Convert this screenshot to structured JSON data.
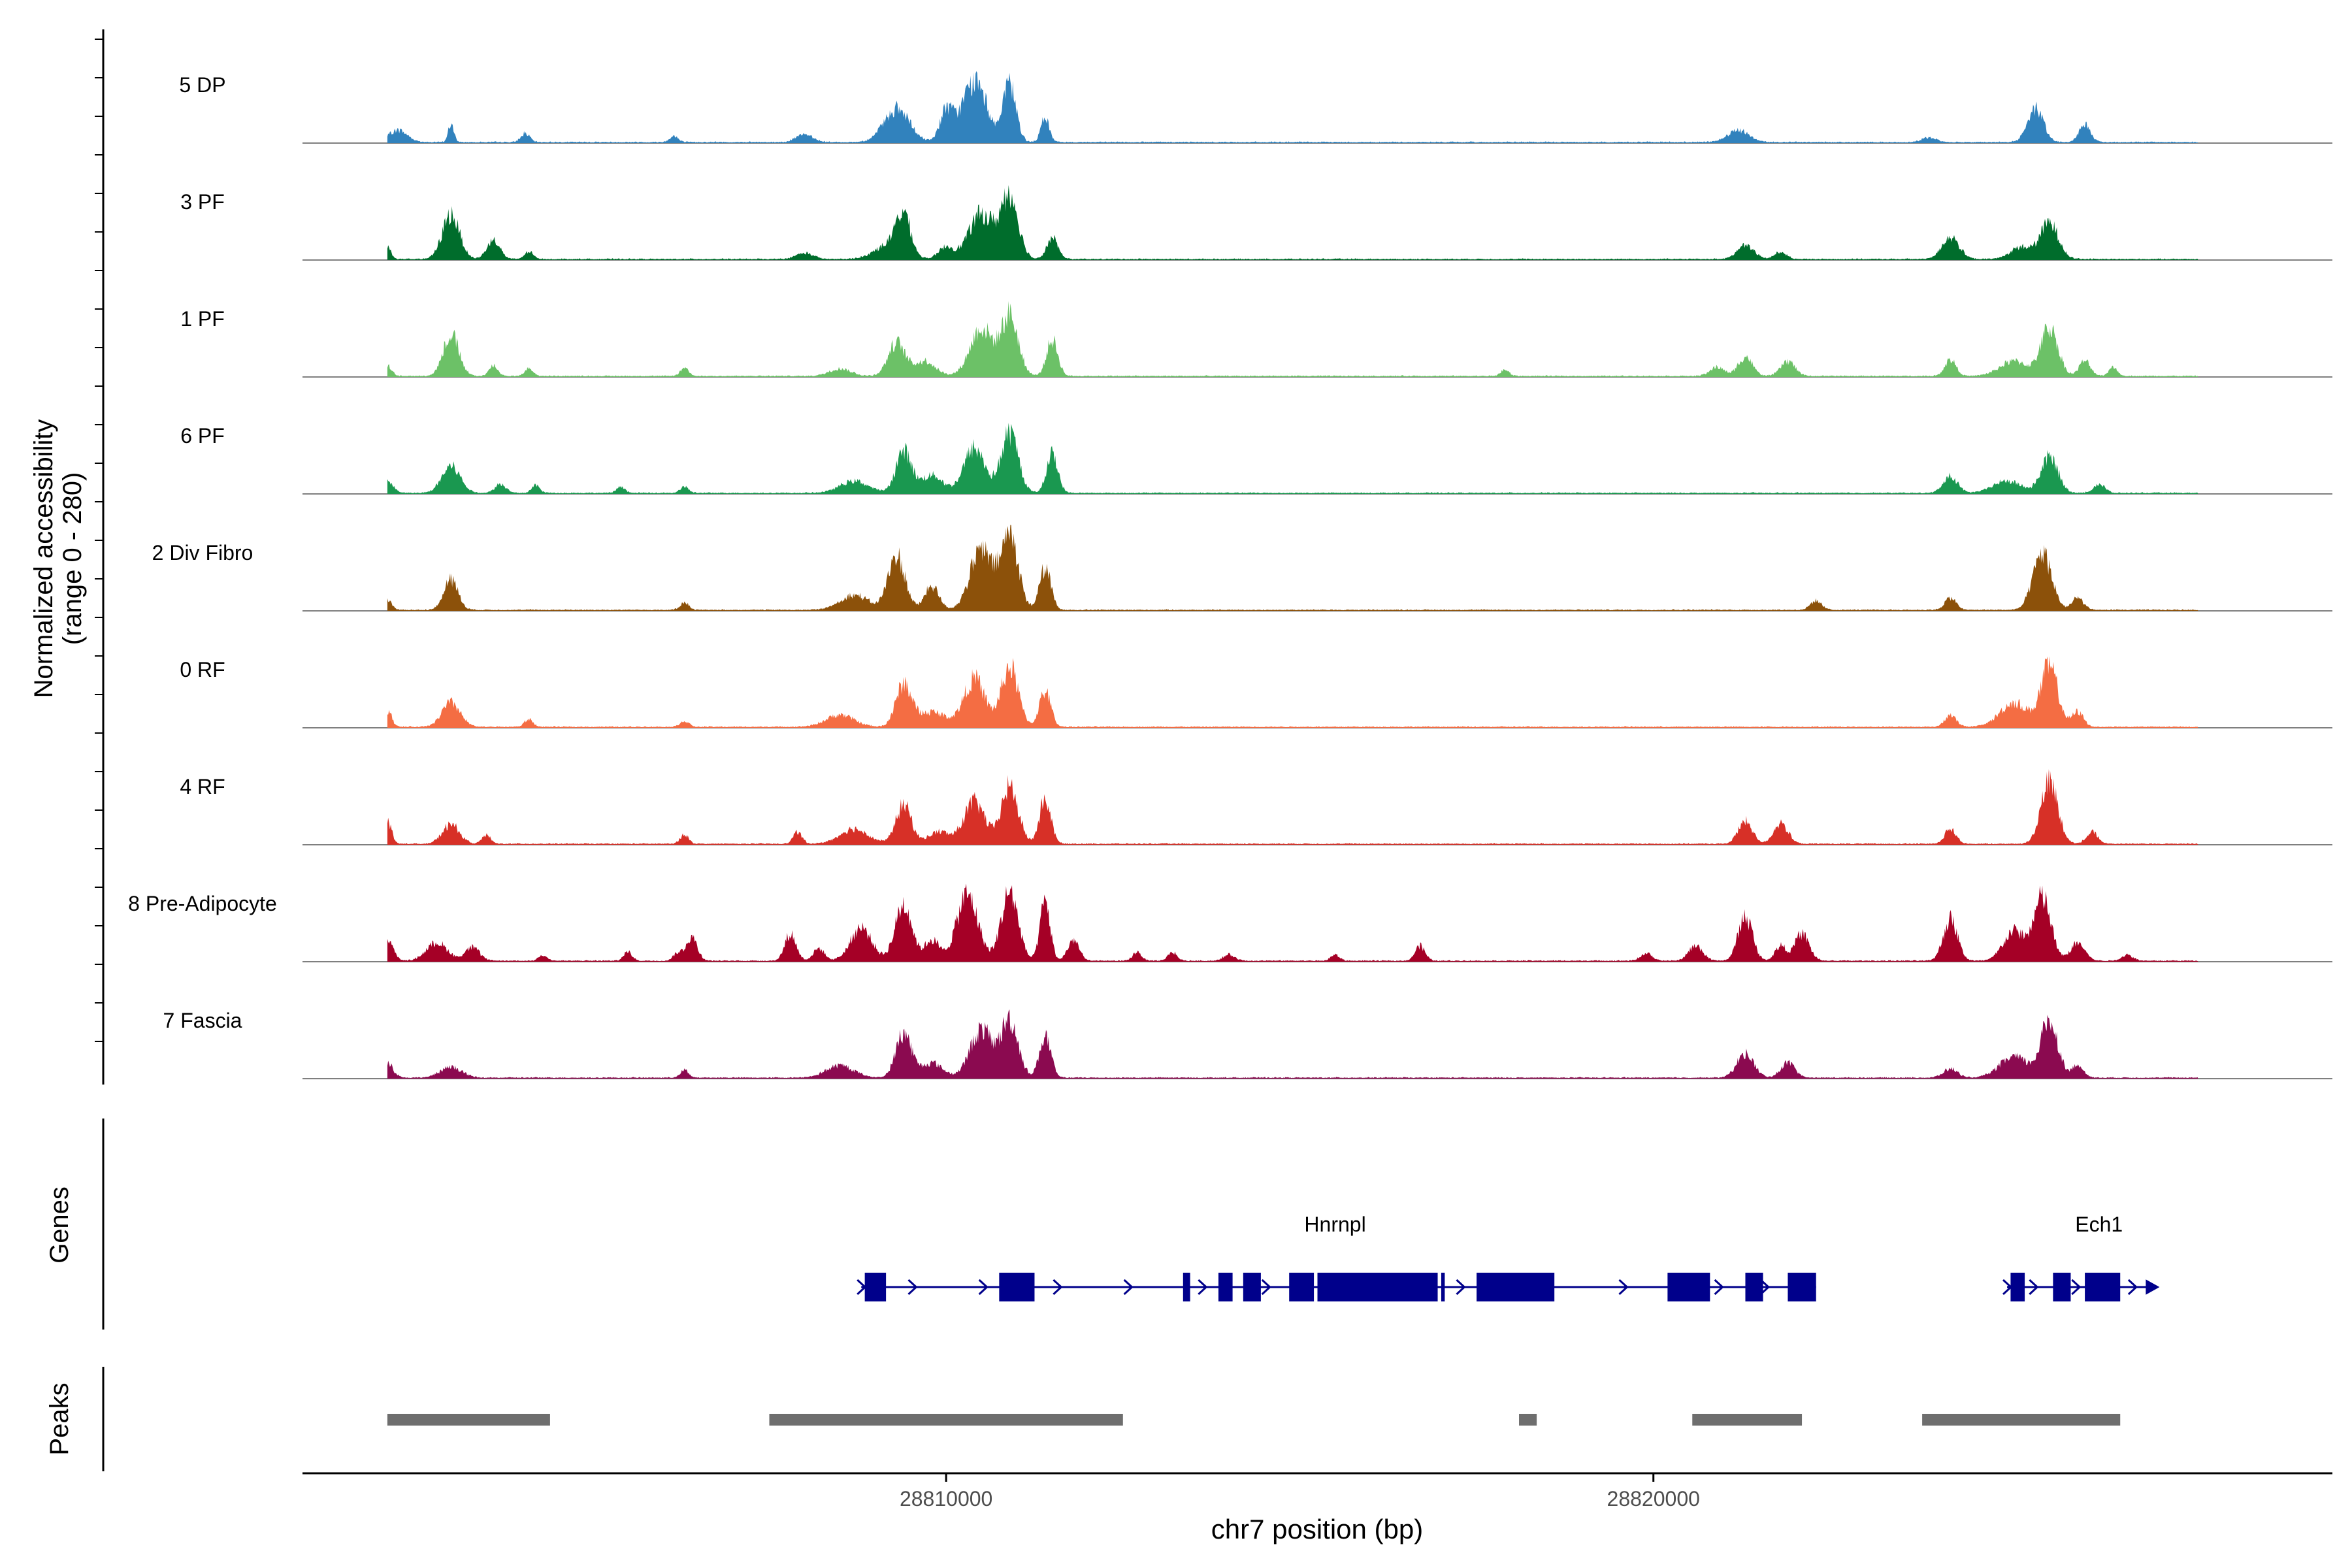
{
  "chart_data": {
    "type": "area",
    "title": "",
    "ylabel_line1": "Normalized accessibility",
    "ylabel_line2": "(range 0 - 280)",
    "xlabel": "chr7 position (bp)",
    "xlim": [
      28800900,
      28829600
    ],
    "ylim": [
      0,
      280
    ],
    "x_ticks": [
      {
        "value": 28810000,
        "label": "28810000"
      },
      {
        "value": 28820000,
        "label": "28820000"
      }
    ],
    "series": [
      {
        "name": "5 DP",
        "color": "#3182bd",
        "peaks": [
          [
            28802250,
            40,
            130
          ],
          [
            28803000,
            60,
            40
          ],
          [
            28804050,
            30,
            60
          ],
          [
            28806150,
            20,
            60
          ],
          [
            28808000,
            25,
            120
          ],
          [
            28809300,
            110,
            180
          ],
          [
            28810000,
            100,
            90
          ],
          [
            28810400,
            200,
            180
          ],
          [
            28810900,
            190,
            90
          ],
          [
            28811400,
            80,
            60
          ],
          [
            28821200,
            40,
            150
          ],
          [
            28823900,
            15,
            100
          ],
          [
            28825400,
            115,
            110
          ],
          [
            28826100,
            60,
            80
          ]
        ]
      },
      {
        "name": "3 PF",
        "color": "#006d2c",
        "peaks": [
          [
            28802100,
            40,
            50
          ],
          [
            28803000,
            150,
            120
          ],
          [
            28803600,
            65,
            90
          ],
          [
            28804100,
            25,
            60
          ],
          [
            28808000,
            20,
            120
          ],
          [
            28809200,
            50,
            200
          ],
          [
            28809400,
            130,
            100
          ],
          [
            28810000,
            40,
            100
          ],
          [
            28810500,
            150,
            180
          ],
          [
            28810900,
            210,
            120
          ],
          [
            28811500,
            70,
            80
          ],
          [
            28821300,
            45,
            120
          ],
          [
            28821800,
            25,
            80
          ],
          [
            28824200,
            75,
            120
          ],
          [
            28825200,
            40,
            150
          ],
          [
            28825600,
            120,
            130
          ]
        ]
      },
      {
        "name": "1 PF",
        "color": "#6cc167",
        "peaks": [
          [
            28802100,
            35,
            60
          ],
          [
            28803000,
            140,
            110
          ],
          [
            28803600,
            35,
            60
          ],
          [
            28804100,
            25,
            60
          ],
          [
            28806300,
            25,
            60
          ],
          [
            28808500,
            25,
            150
          ],
          [
            28809300,
            110,
            120
          ],
          [
            28809700,
            50,
            150
          ],
          [
            28810500,
            160,
            160
          ],
          [
            28810900,
            200,
            120
          ],
          [
            28811500,
            120,
            80
          ],
          [
            28817900,
            20,
            60
          ],
          [
            28820900,
            30,
            100
          ],
          [
            28821300,
            65,
            100
          ],
          [
            28821900,
            50,
            100
          ],
          [
            28824200,
            55,
            80
          ],
          [
            28825100,
            50,
            200
          ],
          [
            28825600,
            160,
            120
          ],
          [
            28826100,
            50,
            80
          ],
          [
            28826500,
            30,
            60
          ]
        ]
      },
      {
        "name": "6 PF",
        "color": "#1a9850",
        "peaks": [
          [
            28802100,
            40,
            80
          ],
          [
            28803000,
            90,
            130
          ],
          [
            28803700,
            30,
            80
          ],
          [
            28804200,
            25,
            60
          ],
          [
            28805400,
            20,
            60
          ],
          [
            28806300,
            20,
            60
          ],
          [
            28808700,
            40,
            200
          ],
          [
            28809400,
            140,
            110
          ],
          [
            28809800,
            60,
            150
          ],
          [
            28810400,
            150,
            150
          ],
          [
            28810900,
            200,
            120
          ],
          [
            28811500,
            130,
            80
          ],
          [
            28824200,
            55,
            100
          ],
          [
            28825000,
            40,
            200
          ],
          [
            28825600,
            120,
            120
          ],
          [
            28826300,
            30,
            80
          ]
        ]
      },
      {
        "name": "2 Div Fibro",
        "color": "#8c510a",
        "peaks": [
          [
            28802100,
            35,
            60
          ],
          [
            28803000,
            100,
            100
          ],
          [
            28806300,
            25,
            60
          ],
          [
            28808700,
            50,
            200
          ],
          [
            28809300,
            180,
            120
          ],
          [
            28809800,
            80,
            100
          ],
          [
            28810500,
            200,
            160
          ],
          [
            28810900,
            250,
            120
          ],
          [
            28811400,
            140,
            80
          ],
          [
            28822300,
            30,
            80
          ],
          [
            28824200,
            40,
            80
          ],
          [
            28825500,
            190,
            130
          ],
          [
            28826000,
            40,
            80
          ]
        ]
      },
      {
        "name": "0 RF",
        "color": "#f46d43",
        "peaks": [
          [
            28802100,
            55,
            60
          ],
          [
            28803000,
            80,
            130
          ],
          [
            28804100,
            25,
            60
          ],
          [
            28806300,
            20,
            60
          ],
          [
            28808500,
            40,
            200
          ],
          [
            28809400,
            140,
            110
          ],
          [
            28809800,
            50,
            200
          ],
          [
            28810400,
            160,
            150
          ],
          [
            28810900,
            200,
            120
          ],
          [
            28811400,
            120,
            80
          ],
          [
            28824200,
            40,
            80
          ],
          [
            28825100,
            80,
            200
          ],
          [
            28825600,
            200,
            120
          ],
          [
            28826000,
            50,
            80
          ]
        ]
      },
      {
        "name": "4 RF",
        "color": "#d73027",
        "peaks": [
          [
            28802100,
            75,
            60
          ],
          [
            28803000,
            65,
            120
          ],
          [
            28803500,
            30,
            60
          ],
          [
            28806300,
            30,
            60
          ],
          [
            28807900,
            40,
            60
          ],
          [
            28808700,
            50,
            200
          ],
          [
            28809400,
            130,
            110
          ],
          [
            28809900,
            40,
            150
          ],
          [
            28810400,
            140,
            150
          ],
          [
            28810900,
            190,
            120
          ],
          [
            28811400,
            150,
            80
          ],
          [
            28821300,
            75,
            100
          ],
          [
            28821800,
            70,
            100
          ],
          [
            28824200,
            50,
            80
          ],
          [
            28825600,
            210,
            120
          ],
          [
            28826200,
            40,
            80
          ]
        ]
      },
      {
        "name": "8 Pre-Adipocyte",
        "color": "#a50026",
        "peaks": [
          [
            28802100,
            70,
            80
          ],
          [
            28802800,
            60,
            150
          ],
          [
            28803300,
            45,
            100
          ],
          [
            28804300,
            20,
            60
          ],
          [
            28805500,
            30,
            60
          ],
          [
            28806200,
            25,
            60
          ],
          [
            28806400,
            80,
            80
          ],
          [
            28807800,
            90,
            80
          ],
          [
            28808200,
            40,
            80
          ],
          [
            28808800,
            110,
            150
          ],
          [
            28809400,
            190,
            120
          ],
          [
            28809800,
            70,
            100
          ],
          [
            28810300,
            220,
            150
          ],
          [
            28810900,
            230,
            120
          ],
          [
            28811400,
            200,
            70
          ],
          [
            28811800,
            70,
            80
          ],
          [
            28812700,
            30,
            60
          ],
          [
            28813200,
            30,
            60
          ],
          [
            28814000,
            20,
            80
          ],
          [
            28815500,
            20,
            60
          ],
          [
            28816700,
            50,
            70
          ],
          [
            28819900,
            25,
            80
          ],
          [
            28820600,
            50,
            100
          ],
          [
            28821300,
            150,
            100
          ],
          [
            28821800,
            50,
            80
          ],
          [
            28822100,
            90,
            100
          ],
          [
            28824200,
            140,
            100
          ],
          [
            28825100,
            100,
            150
          ],
          [
            28825500,
            210,
            120
          ],
          [
            28826000,
            60,
            100
          ],
          [
            28826700,
            20,
            80
          ]
        ]
      },
      {
        "name": "7 Fascia",
        "color": "#8b0a50",
        "peaks": [
          [
            28802100,
            50,
            80
          ],
          [
            28803000,
            35,
            150
          ],
          [
            28806300,
            25,
            60
          ],
          [
            28808500,
            40,
            200
          ],
          [
            28809400,
            150,
            110
          ],
          [
            28809800,
            50,
            150
          ],
          [
            28810500,
            160,
            160
          ],
          [
            28810900,
            190,
            120
          ],
          [
            28811400,
            140,
            80
          ],
          [
            28821300,
            80,
            120
          ],
          [
            28821900,
            50,
            100
          ],
          [
            28824200,
            30,
            100
          ],
          [
            28825100,
            70,
            200
          ],
          [
            28825600,
            190,
            120
          ],
          [
            28826000,
            40,
            80
          ]
        ]
      }
    ],
    "genes_label": "Genes",
    "genes": [
      {
        "name": "Hnrnpl",
        "label_x": 28815500,
        "start": 28808800,
        "end": 28822300,
        "exons": [
          [
            28808850,
            28809150
          ],
          [
            28810750,
            28811250
          ],
          [
            28813350,
            28813450
          ],
          [
            28813850,
            28814050
          ],
          [
            28814200,
            28814450
          ],
          [
            28814850,
            28815200
          ],
          [
            28815250,
            28816950
          ],
          [
            28817000,
            28817050
          ],
          [
            28817500,
            28818600
          ],
          [
            28820200,
            28820800
          ],
          [
            28821300,
            28821550
          ],
          [
            28821900,
            28822300
          ]
        ],
        "arrows": [
          28809550,
          28810550,
          28811600,
          28812600,
          28813650,
          28814550,
          28817300,
          28819600,
          28820950,
          28821600
        ]
      },
      {
        "name": "Ech1",
        "label_x": 28826300,
        "start": 28825000,
        "end": 28827100,
        "exons": [
          [
            28825050,
            28825250
          ],
          [
            28825650,
            28825900
          ],
          [
            28826100,
            28826600
          ]
        ],
        "arrows": [
          28825400,
          28826000,
          28826800
        ]
      }
    ],
    "peaks_label": "Peaks",
    "peak_regions": [
      [
        28802100,
        28804400
      ],
      [
        28807500,
        28812500
      ],
      [
        28818100,
        28818350
      ],
      [
        28820550,
        28822100
      ],
      [
        28823800,
        28826600
      ]
    ],
    "legend": "none",
    "grid": false
  }
}
